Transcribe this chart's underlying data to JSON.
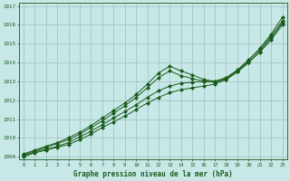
{
  "title": "Graphe pression niveau de la mer (hPa)",
  "bg_color": "#c8e8e8",
  "line_color": "#1a5c1a",
  "grid_color": "#9dbfbf",
  "xlim_min": -0.4,
  "xlim_max": 23.4,
  "ylim_min": 1008.85,
  "ylim_max": 1017.15,
  "yticks": [
    1009,
    1010,
    1011,
    1012,
    1013,
    1014,
    1015,
    1016,
    1017
  ],
  "xticks": [
    0,
    1,
    2,
    3,
    4,
    5,
    6,
    7,
    8,
    9,
    10,
    11,
    12,
    13,
    14,
    15,
    16,
    17,
    18,
    19,
    20,
    21,
    22,
    23
  ],
  "series": [
    [
      1009.0,
      1009.2,
      1009.35,
      1009.5,
      1009.65,
      1009.9,
      1010.2,
      1010.55,
      1010.85,
      1011.15,
      1011.5,
      1011.85,
      1012.15,
      1012.4,
      1012.55,
      1012.65,
      1012.75,
      1012.85,
      1013.1,
      1013.5,
      1014.0,
      1014.6,
      1015.3,
      1016.1
    ],
    [
      1009.05,
      1009.25,
      1009.4,
      1009.55,
      1009.75,
      1010.05,
      1010.35,
      1010.7,
      1011.05,
      1011.4,
      1011.75,
      1012.15,
      1012.5,
      1012.75,
      1012.9,
      1012.95,
      1013.0,
      1013.0,
      1013.2,
      1013.6,
      1014.15,
      1014.7,
      1015.4,
      1016.2
    ],
    [
      1009.1,
      1009.3,
      1009.5,
      1009.7,
      1009.9,
      1010.2,
      1010.55,
      1010.9,
      1011.3,
      1011.7,
      1012.15,
      1012.65,
      1013.2,
      1013.55,
      1013.3,
      1013.15,
      1013.0,
      1012.95,
      1013.1,
      1013.5,
      1014.0,
      1014.55,
      1015.2,
      1016.0
    ],
    [
      1009.15,
      1009.35,
      1009.55,
      1009.75,
      1010.0,
      1010.3,
      1010.65,
      1011.05,
      1011.45,
      1011.85,
      1012.3,
      1012.85,
      1013.45,
      1013.8,
      1013.55,
      1013.35,
      1013.1,
      1013.0,
      1013.15,
      1013.55,
      1014.1,
      1014.75,
      1015.5,
      1016.4
    ]
  ]
}
